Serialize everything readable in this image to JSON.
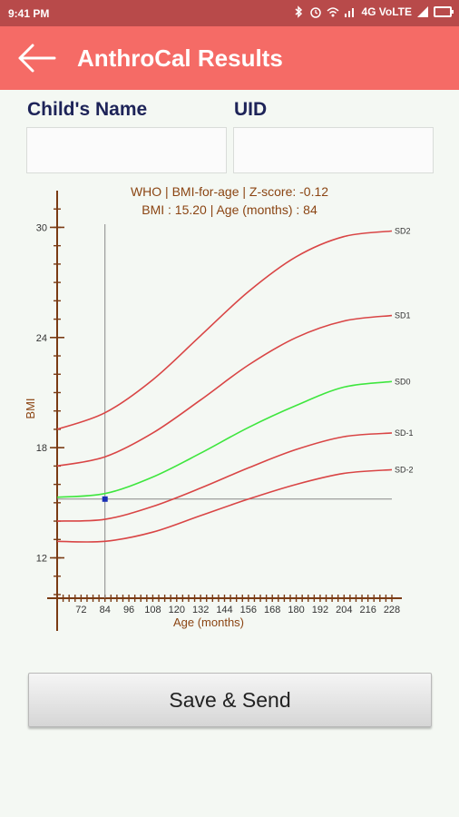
{
  "status_bar": {
    "time": "9:41 PM",
    "network": "4G VoLTE",
    "icons": [
      "bluetooth-icon",
      "alarm-icon",
      "wifi-icon",
      "signal-icon",
      "battery-icon"
    ]
  },
  "app_bar": {
    "title": "AnthroCal Results",
    "back_icon": "arrow-left-icon",
    "color": "#f56b66"
  },
  "form": {
    "name_label": "Child's  Name",
    "uid_label": "UID",
    "name_value": "",
    "uid_value": ""
  },
  "chart_data": {
    "type": "line",
    "title": "WHO | BMI-for-age | Z-score:  -0.12",
    "subtitle": "BMI  :  15.20   | Age (months) :  84",
    "xlabel": "Age (months)",
    "ylabel": "BMI",
    "x_ticks": [
      72,
      84,
      96,
      108,
      120,
      132,
      144,
      156,
      168,
      180,
      192,
      204,
      216,
      228
    ],
    "y_ticks": [
      12,
      18,
      24,
      30
    ],
    "xlim": [
      60,
      228
    ],
    "ylim": [
      9.8,
      32
    ],
    "grid": false,
    "series": [
      {
        "name": "SD2",
        "color": "#d94545",
        "x": [
          60,
          84,
          108,
          132,
          156,
          180,
          204,
          228
        ],
        "y": [
          19.0,
          19.9,
          21.7,
          24.1,
          26.5,
          28.4,
          29.5,
          29.8
        ]
      },
      {
        "name": "SD1",
        "color": "#d94545",
        "x": [
          60,
          84,
          108,
          132,
          156,
          180,
          204,
          228
        ],
        "y": [
          17.0,
          17.5,
          18.8,
          20.6,
          22.5,
          24.0,
          24.9,
          25.2
        ]
      },
      {
        "name": "SD0",
        "color": "#3ee63e",
        "x": [
          60,
          84,
          108,
          132,
          156,
          180,
          204,
          228
        ],
        "y": [
          15.3,
          15.5,
          16.4,
          17.7,
          19.1,
          20.3,
          21.3,
          21.6
        ]
      },
      {
        "name": "SD-1",
        "color": "#d94545",
        "x": [
          60,
          84,
          108,
          132,
          156,
          180,
          204,
          228
        ],
        "y": [
          14.0,
          14.1,
          14.8,
          15.8,
          16.9,
          17.9,
          18.6,
          18.8
        ]
      },
      {
        "name": "SD-2",
        "color": "#d94545",
        "x": [
          60,
          84,
          108,
          132,
          156,
          180,
          204,
          228
        ],
        "y": [
          12.9,
          12.9,
          13.4,
          14.3,
          15.2,
          16.0,
          16.6,
          16.8
        ]
      }
    ],
    "marker": {
      "x": 84,
      "y": 15.2,
      "color": "#1a2fb5"
    },
    "axis_color": "#7a3b14",
    "label_color": "#8b4513"
  },
  "actions": {
    "save_label": "Save & Send"
  }
}
